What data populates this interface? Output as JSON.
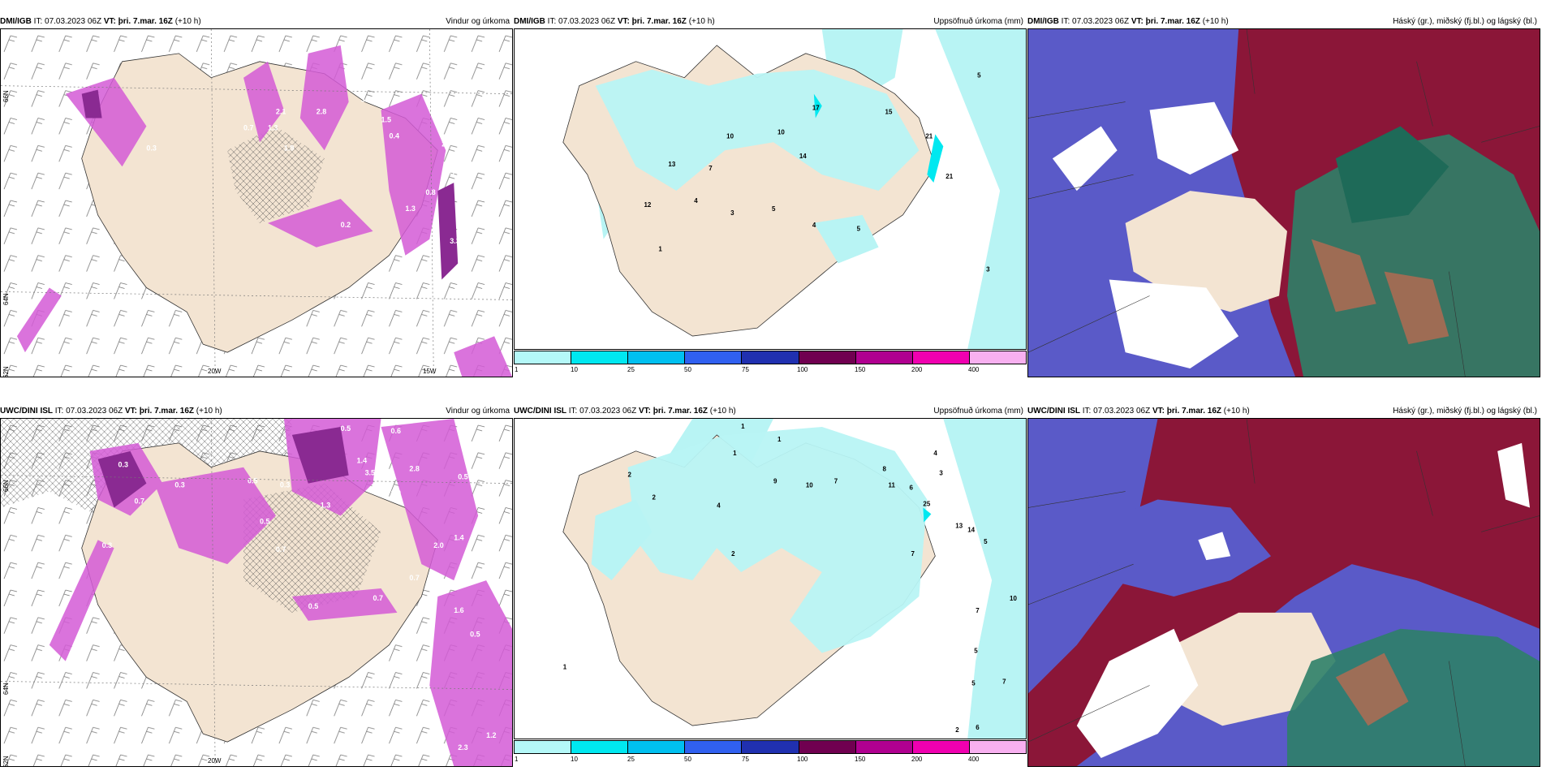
{
  "panels": [
    {
      "model": "DMI/IGB",
      "it_label": "IT: 07.03.2023 06Z",
      "vt_label": "VT: þri. 7.mar. 16Z",
      "lead": "(+10 h)",
      "field": "Vindur og úrkoma",
      "grid_labels": {
        "lon1": "20W",
        "lon2": "15W",
        "lat1": "66N",
        "lat2": "64N",
        "lat3": "62N"
      },
      "precip_labels": [
        "2.1",
        "2.8",
        "3.3",
        "1.5",
        "0.4",
        "1.9",
        "1.3",
        "2.7",
        "3.7",
        "0.8",
        "1.3",
        "0.2",
        "3.3",
        "0.3",
        "0.7"
      ]
    },
    {
      "model": "DMI/IGB",
      "it_label": "IT: 07.03.2023 06Z",
      "vt_label": "VT: þri. 7.mar. 16Z",
      "lead": "(+10 h)",
      "field": "Uppsöfnuð úrkoma (mm)",
      "values": [
        "5",
        "17",
        "15",
        "10",
        "10",
        "14",
        "21",
        "21",
        "13",
        "7",
        "4",
        "12",
        "3",
        "5",
        "4",
        "5",
        "1",
        "3"
      ]
    },
    {
      "model": "DMI/IGB",
      "it_label": "IT: 07.03.2023 06Z",
      "vt_label": "VT: þri. 7.mar. 16Z",
      "lead": "(+10 h)",
      "field": "Háský (gr.), miðský (fj.bl.) og lágský (bl.)"
    },
    {
      "model": "UWC/DINI ISL",
      "it_label": "IT: 07.03.2023 06Z",
      "vt_label": "VT: þri. 7.mar. 16Z",
      "lead": "(+10 h)",
      "field": "Vindur og úrkoma",
      "grid_labels": {
        "lon1": "20W",
        "lat1": "66N",
        "lat2": "64N",
        "lat3": "62N"
      },
      "precip_labels": [
        "0.5",
        "0.6",
        "0.3",
        "0.3",
        "0.7",
        "0.5",
        "0.3",
        "1.4",
        "3.5",
        "1.9",
        "2.8",
        "0.5",
        "1.3",
        "0.5",
        "0.7",
        "0.5",
        "2.0",
        "1.4",
        "0.5",
        "0.7",
        "1.6",
        "0.3",
        "0.7",
        "1.2",
        "2.3"
      ]
    },
    {
      "model": "UWC/DINI ISL",
      "it_label": "IT: 07.03.2023 06Z",
      "vt_label": "VT: þri. 7.mar. 16Z",
      "lead": "(+10 h)",
      "field": "Uppsöfnuð úrkoma (mm)",
      "values": [
        "1",
        "1",
        "2",
        "2",
        "4",
        "1",
        "8",
        "11",
        "6",
        "10",
        "7",
        "9",
        "3",
        "4",
        "25",
        "13",
        "14",
        "5",
        "10",
        "7",
        "5",
        "2",
        "7",
        "7",
        "1",
        "5",
        "6",
        "2"
      ]
    },
    {
      "model": "UWC/DINI ISL",
      "it_label": "IT: 07.03.2023 06Z",
      "vt_label": "VT: þri. 7.mar. 16Z",
      "lead": "(+10 h)",
      "field": "Háský (gr.), miðský (fj.bl.) og lágský (bl.)"
    }
  ],
  "colorbar": {
    "ticks": [
      "1",
      "10",
      "25",
      "50",
      "75",
      "100",
      "150",
      "200",
      "400"
    ],
    "colors": [
      "#b4f8f8",
      "#00e8f0",
      "#00c0f0",
      "#3060f0",
      "#2030b0",
      "#700050",
      "#b00090",
      "#f000b0",
      "#f8b0f0"
    ]
  },
  "map_colors": {
    "land": "#f3e4d2",
    "precip_light": "#b8f4f4",
    "precip_purple": "#d35ad6",
    "precip_dark": "#8a2a92",
    "cloud_high_green": "#2e8068",
    "cloud_mid_blue": "#5a5ac8",
    "cloud_low_red": "#8b1638",
    "cloud_white": "#ffffff"
  }
}
